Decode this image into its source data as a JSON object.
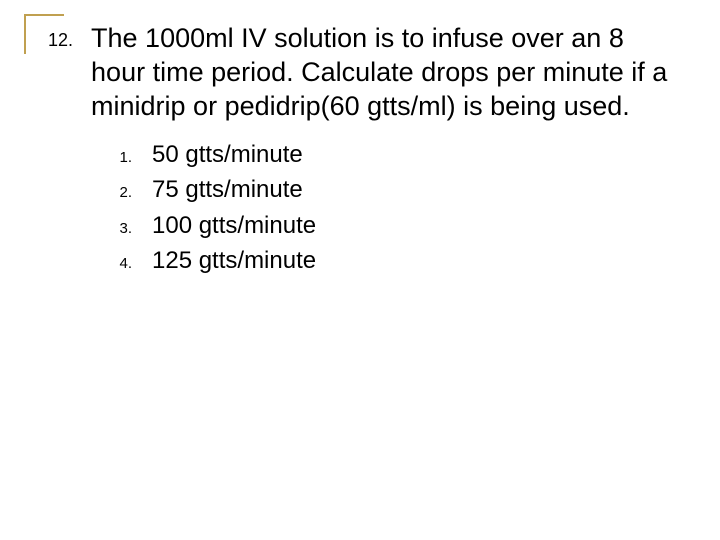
{
  "question": {
    "number": "12.",
    "text": "The 1000ml IV solution is to infuse over an 8 hour time period.  Calculate drops per minute if a minidrip or pedidrip(60 gtts/ml) is being used."
  },
  "options": [
    {
      "number": "1.",
      "text": "50 gtts/minute"
    },
    {
      "number": "2.",
      "text": "75 gtts/minute"
    },
    {
      "number": "3.",
      "text": "100 gtts/minute"
    },
    {
      "number": "4.",
      "text": "125 gtts/minute"
    }
  ],
  "style": {
    "bracket_color": "#c0a050",
    "background": "#ffffff",
    "question_fontsize": 27,
    "number_fontsize": 18,
    "option_number_fontsize": 15,
    "option_text_fontsize": 24
  }
}
